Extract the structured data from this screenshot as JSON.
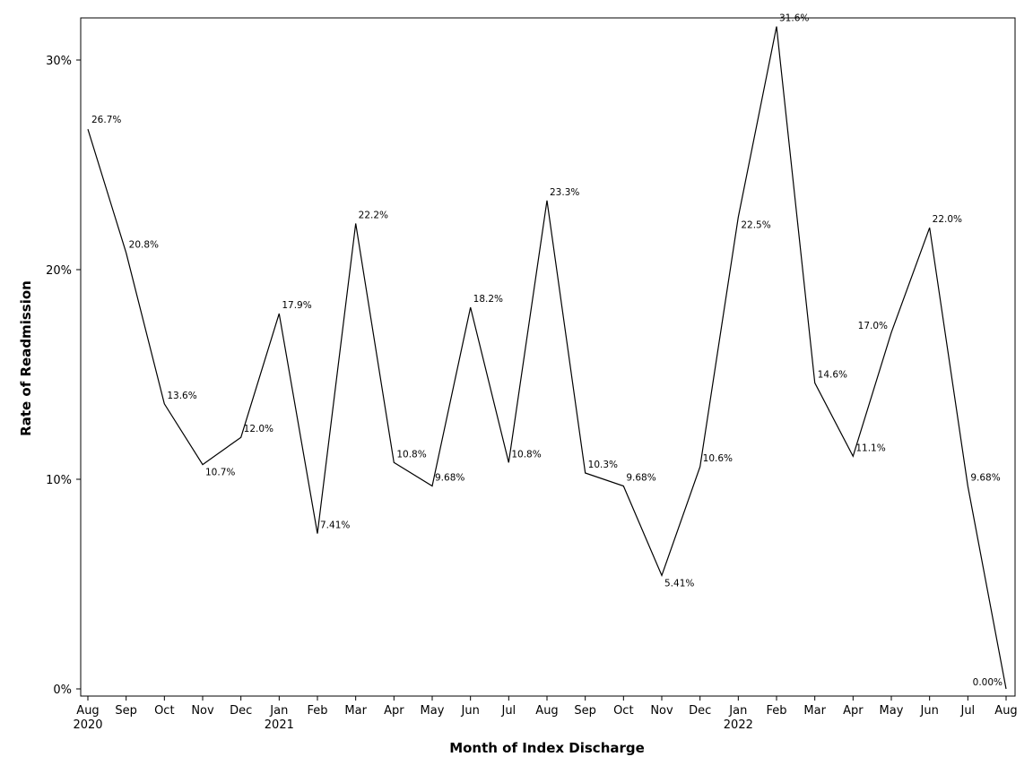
{
  "chart_data": {
    "type": "line",
    "title": "",
    "xlabel": "Month of Index Discharge",
    "ylabel": "Rate of Readmission",
    "ylim": [
      0,
      0.32
    ],
    "yticks": [
      {
        "value": 0,
        "label": "0%"
      },
      {
        "value": 0.1,
        "label": "10%"
      },
      {
        "value": 0.2,
        "label": "20%"
      },
      {
        "value": 0.3,
        "label": "30%"
      }
    ],
    "grid": false,
    "legend": "none",
    "line_color": "#000000",
    "points": [
      {
        "month": "Aug",
        "year": "2020",
        "value": 0.267,
        "label": "26.7%",
        "pos": "right"
      },
      {
        "month": "Sep",
        "year": "",
        "value": 0.208,
        "label": "20.8%",
        "pos": "right"
      },
      {
        "month": "Oct",
        "year": "",
        "value": 0.136,
        "label": "13.6%",
        "pos": "right"
      },
      {
        "month": "Nov",
        "year": "",
        "value": 0.107,
        "label": "10.7%",
        "pos": "below-right"
      },
      {
        "month": "Dec",
        "year": "",
        "value": 0.12,
        "label": "12.0%",
        "pos": "right"
      },
      {
        "month": "Jan",
        "year": "2021",
        "value": 0.179,
        "label": "17.9%",
        "pos": "right"
      },
      {
        "month": "Feb",
        "year": "",
        "value": 0.0741,
        "label": "7.41%",
        "pos": "right"
      },
      {
        "month": "Mar",
        "year": "",
        "value": 0.222,
        "label": "22.2%",
        "pos": "right"
      },
      {
        "month": "Apr",
        "year": "",
        "value": 0.108,
        "label": "10.8%",
        "pos": "right"
      },
      {
        "month": "May",
        "year": "",
        "value": 0.0968,
        "label": "9.68%",
        "pos": "right"
      },
      {
        "month": "Jun",
        "year": "",
        "value": 0.182,
        "label": "18.2%",
        "pos": "right"
      },
      {
        "month": "Jul",
        "year": "",
        "value": 0.108,
        "label": "10.8%",
        "pos": "right"
      },
      {
        "month": "Aug",
        "year": "",
        "value": 0.233,
        "label": "23.3%",
        "pos": "right"
      },
      {
        "month": "Sep",
        "year": "",
        "value": 0.103,
        "label": "10.3%",
        "pos": "right"
      },
      {
        "month": "Oct",
        "year": "",
        "value": 0.0968,
        "label": "9.68%",
        "pos": "right"
      },
      {
        "month": "Nov",
        "year": "",
        "value": 0.0541,
        "label": "5.41%",
        "pos": "below-right"
      },
      {
        "month": "Dec",
        "year": "",
        "value": 0.106,
        "label": "10.6%",
        "pos": "right"
      },
      {
        "month": "Jan",
        "year": "2022",
        "value": 0.225,
        "label": "22.5%",
        "pos": "below-right"
      },
      {
        "month": "Feb",
        "year": "",
        "value": 0.316,
        "label": "31.6%",
        "pos": "right"
      },
      {
        "month": "Mar",
        "year": "",
        "value": 0.146,
        "label": "14.6%",
        "pos": "right"
      },
      {
        "month": "Apr",
        "year": "",
        "value": 0.111,
        "label": "11.1%",
        "pos": "right"
      },
      {
        "month": "May",
        "year": "",
        "value": 0.17,
        "label": "17.0%",
        "pos": "left"
      },
      {
        "month": "Jun",
        "year": "",
        "value": 0.22,
        "label": "22.0%",
        "pos": "right"
      },
      {
        "month": "Jul",
        "year": "",
        "value": 0.0968,
        "label": "9.68%",
        "pos": "right"
      },
      {
        "month": "Aug",
        "year": "",
        "value": 0,
        "label": "0.00%",
        "pos": "left"
      }
    ]
  }
}
